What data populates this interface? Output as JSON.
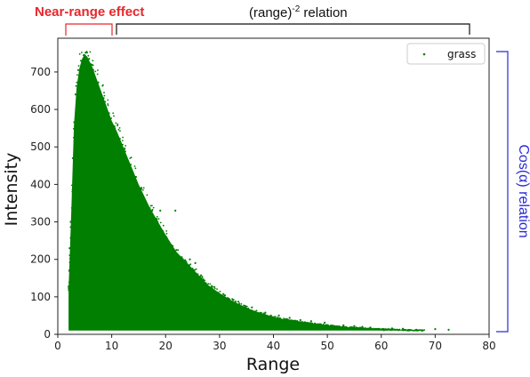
{
  "colors": {
    "series": "#007f00",
    "near_range_bracket": "#e8262a",
    "range_bracket": "#111111",
    "cos_bracket": "#2a2ad6"
  },
  "annotations": {
    "near_range_effect": "Near-range effect",
    "range_relation_prefix": "(range)",
    "range_relation_exponent": "-2",
    "range_relation_suffix": " relation",
    "cos_relation": "Cos(α) relation"
  },
  "chart_data": {
    "type": "scatter",
    "title": "",
    "xlabel": "Range",
    "ylabel": "Intensity",
    "xlim": [
      0,
      80
    ],
    "ylim": [
      0,
      790
    ],
    "xticks": [
      0,
      10,
      20,
      30,
      40,
      50,
      60,
      70,
      80
    ],
    "yticks": [
      0,
      100,
      200,
      300,
      400,
      500,
      600,
      700
    ],
    "grid": false,
    "legend": {
      "position": "top-right",
      "entries": [
        "grass"
      ]
    },
    "series": [
      {
        "name": "grass",
        "color": "#007f00",
        "upper_envelope": [
          [
            2.0,
            120
          ],
          [
            2.5,
            330
          ],
          [
            3.0,
            560
          ],
          [
            3.5,
            660
          ],
          [
            4.0,
            710
          ],
          [
            4.5,
            735
          ],
          [
            5.0,
            748
          ],
          [
            5.5,
            740
          ],
          [
            6.0,
            725
          ],
          [
            6.5,
            710
          ],
          [
            7.0,
            690
          ],
          [
            8.0,
            650
          ],
          [
            9.0,
            610
          ],
          [
            10.0,
            570
          ],
          [
            11.0,
            540
          ],
          [
            12.0,
            505
          ],
          [
            13.0,
            470
          ],
          [
            14.0,
            435
          ],
          [
            15.0,
            400
          ],
          [
            16.0,
            370
          ],
          [
            17.0,
            340
          ],
          [
            18.0,
            315
          ],
          [
            19.0,
            290
          ],
          [
            20.0,
            265
          ],
          [
            22.0,
            220
          ],
          [
            24.0,
            190
          ],
          [
            26.0,
            160
          ],
          [
            28.0,
            130
          ],
          [
            30.0,
            110
          ],
          [
            32.0,
            92
          ],
          [
            34.0,
            78
          ],
          [
            36.0,
            65
          ],
          [
            38.0,
            55
          ],
          [
            40.0,
            46
          ],
          [
            42.0,
            40
          ],
          [
            44.0,
            35
          ],
          [
            46.0,
            31
          ],
          [
            48.0,
            27
          ],
          [
            50.0,
            24
          ],
          [
            52.0,
            21
          ],
          [
            54.0,
            19
          ],
          [
            56.0,
            17
          ],
          [
            58.0,
            15
          ],
          [
            60.0,
            14
          ],
          [
            62.0,
            13
          ],
          [
            64.0,
            12
          ],
          [
            66.0,
            11
          ],
          [
            68.0,
            11
          ]
        ],
        "lower_envelope": [
          [
            2.0,
            10
          ],
          [
            10.0,
            10
          ],
          [
            20.0,
            10
          ],
          [
            30.0,
            10
          ],
          [
            40.0,
            10
          ],
          [
            50.0,
            10
          ],
          [
            60.0,
            10
          ],
          [
            68.0,
            10
          ]
        ],
        "outliers": [
          [
            72.5,
            12
          ],
          [
            70.0,
            14
          ],
          [
            66.5,
            12
          ],
          [
            64.0,
            15
          ],
          [
            62.0,
            16
          ],
          [
            60.5,
            11
          ],
          [
            58.0,
            18
          ],
          [
            56.5,
            20
          ],
          [
            55.0,
            22
          ],
          [
            53.0,
            24
          ],
          [
            49.5,
            31
          ],
          [
            47.0,
            35
          ],
          [
            45.0,
            38
          ],
          [
            43.0,
            44
          ],
          [
            41.0,
            50
          ],
          [
            38.5,
            58
          ],
          [
            36.0,
            72
          ],
          [
            33.5,
            87
          ],
          [
            31.0,
            104
          ],
          [
            28.5,
            125
          ],
          [
            27.0,
            145
          ],
          [
            25.0,
            175
          ],
          [
            23.0,
            206
          ],
          [
            21.0,
            235
          ],
          [
            19.5,
            275
          ],
          [
            18.5,
            300
          ],
          [
            17.5,
            330
          ],
          [
            16.0,
            362
          ],
          [
            15.5,
            388
          ],
          [
            14.5,
            420
          ],
          [
            13.5,
            453
          ],
          [
            12.5,
            488
          ],
          [
            11.5,
            522
          ],
          [
            10.5,
            555
          ],
          [
            9.5,
            590
          ],
          [
            8.5,
            630
          ],
          [
            7.5,
            672
          ],
          [
            6.5,
            718
          ],
          [
            5.8,
            735
          ],
          [
            5.2,
            752
          ],
          [
            4.8,
            745
          ],
          [
            4.3,
            730
          ],
          [
            3.8,
            705
          ],
          [
            3.3,
            640
          ],
          [
            2.8,
            470
          ],
          [
            2.4,
            300
          ],
          [
            2.2,
            230
          ],
          [
            21.8,
            330
          ],
          [
            19.0,
            330
          ],
          [
            25.5,
            190
          ],
          [
            22.0,
            225
          ],
          [
            26.5,
            150
          ],
          [
            24.5,
            200
          ]
        ]
      }
    ]
  }
}
